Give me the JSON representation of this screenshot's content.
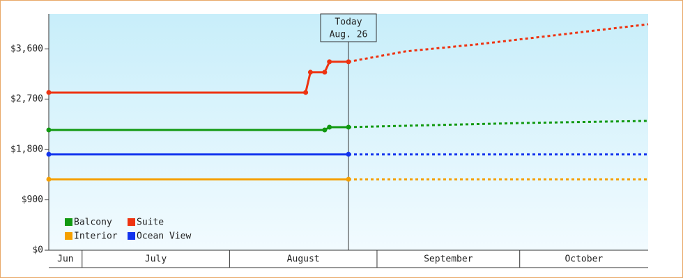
{
  "chart_data": {
    "type": "line",
    "xlim": [
      0,
      126
    ],
    "ylim": [
      0,
      4225
    ],
    "yticks": [
      {
        "value": 0,
        "label": "$0"
      },
      {
        "value": 900,
        "label": "$900"
      },
      {
        "value": 1800,
        "label": "$1,800"
      },
      {
        "value": 2700,
        "label": "$2,700"
      },
      {
        "value": 3600,
        "label": "$3,600"
      }
    ],
    "months": [
      {
        "label": "Jun",
        "start": 0,
        "end": 7
      },
      {
        "label": "July",
        "start": 7,
        "end": 38
      },
      {
        "label": "August",
        "start": 38,
        "end": 69
      },
      {
        "label": "September",
        "start": 69,
        "end": 99
      },
      {
        "label": "October",
        "start": 99,
        "end": 126
      }
    ],
    "today": {
      "x": 63,
      "label": "Today",
      "date": "Aug. 26"
    },
    "series": [
      {
        "name": "Balcony",
        "color": "#119911",
        "x": [
          0,
          58,
          59,
          63,
          75,
          100,
          126
        ],
        "values": [
          2150,
          2150,
          2200,
          2200,
          2225,
          2275,
          2312
        ]
      },
      {
        "name": "Suite",
        "color": "#ee3311",
        "x": [
          0,
          54,
          55,
          58,
          59,
          63,
          75,
          90,
          105,
          126
        ],
        "values": [
          2820,
          2820,
          3182,
          3182,
          3369,
          3369,
          3555,
          3680,
          3829,
          4040
        ]
      },
      {
        "name": "Interior",
        "color": "#f5a000",
        "x": [
          0,
          63,
          126
        ],
        "values": [
          1268,
          1268,
          1268
        ]
      },
      {
        "name": "Ocean View",
        "color": "#1133ee",
        "x": [
          0,
          63,
          126
        ],
        "values": [
          1715,
          1715,
          1715
        ]
      }
    ]
  }
}
